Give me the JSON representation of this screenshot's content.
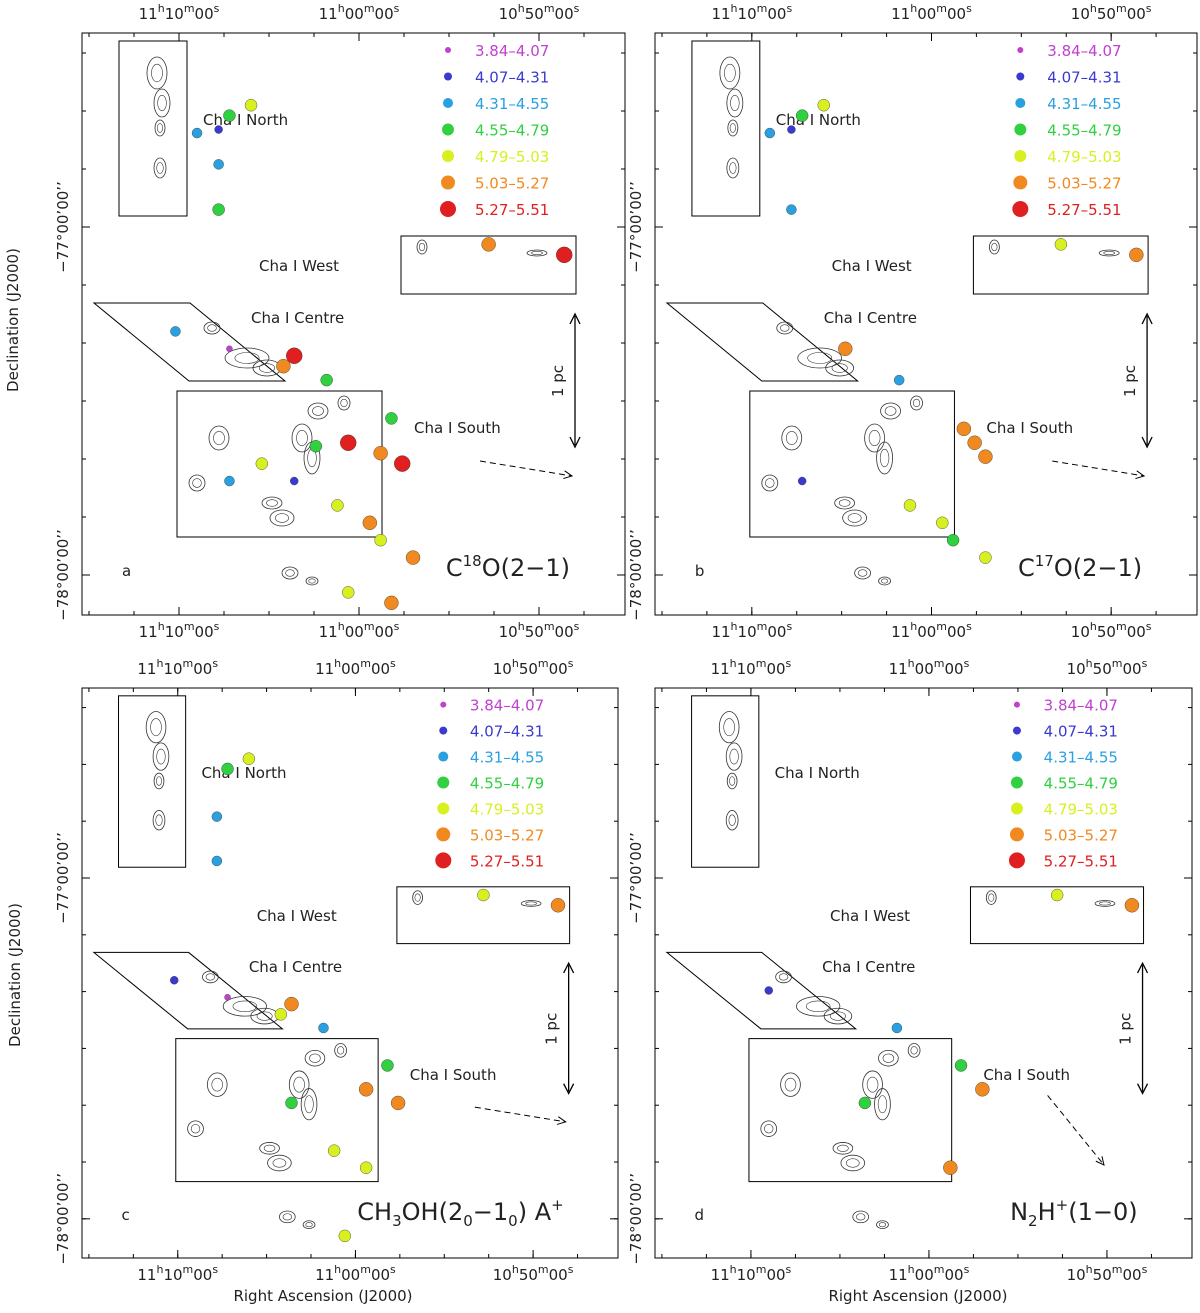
{
  "legend": {
    "items": [
      {
        "label": "3.84–4.07",
        "color": "#c040d0"
      },
      {
        "label": "4.07–4.31",
        "color": "#3a3ad0"
      },
      {
        "label": "4.31–4.55",
        "color": "#2aa0e0"
      },
      {
        "label": "4.55–4.79",
        "color": "#30d040"
      },
      {
        "label": "4.79–5.03",
        "color": "#d8f020"
      },
      {
        "label": "5.03–5.27",
        "color": "#f08a20"
      },
      {
        "label": "5.27–5.51",
        "color": "#e02020"
      }
    ]
  },
  "axes": {
    "ra_ticks": [
      {
        "h": "11",
        "m": "10",
        "s": "00"
      },
      {
        "h": "11",
        "m": "00",
        "s": "00"
      },
      {
        "h": "10",
        "m": "50",
        "s": "00"
      }
    ],
    "dec_ticks": [
      "−77°00’00’’",
      "−78°00’00’’"
    ],
    "ylabel": "Declination (J2000)",
    "xlabel": "Right Ascension (J2000)"
  },
  "regions": {
    "north": "Cha I North",
    "west": "Cha I West",
    "centre": "Cha I Centre",
    "south": "Cha I South"
  },
  "scale_bar": "1 pc",
  "chart_data": [
    {
      "type": "scatter",
      "panel_letter": "a",
      "molecule": {
        "base": "C",
        "sup": "18",
        "rest": "O(2−1)"
      },
      "points": [
        {
          "ra": 11.1,
          "dec": -76.65,
          "bin": 4
        },
        {
          "ra": 11.12,
          "dec": -76.68,
          "bin": 3
        },
        {
          "ra": 11.13,
          "dec": -76.72,
          "bin": 1
        },
        {
          "ra": 11.15,
          "dec": -76.73,
          "bin": 2
        },
        {
          "ra": 11.13,
          "dec": -76.82,
          "bin": 2
        },
        {
          "ra": 11.13,
          "dec": -76.95,
          "bin": 3
        },
        {
          "ra": 10.88,
          "dec": -77.05,
          "bin": 5
        },
        {
          "ra": 10.81,
          "dec": -77.08,
          "bin": 6
        },
        {
          "ra": 11.17,
          "dec": -77.3,
          "bin": 2
        },
        {
          "ra": 11.12,
          "dec": -77.35,
          "bin": 0
        },
        {
          "ra": 11.06,
          "dec": -77.37,
          "bin": 6
        },
        {
          "ra": 11.07,
          "dec": -77.4,
          "bin": 5
        },
        {
          "ra": 11.03,
          "dec": -77.44,
          "bin": 3
        },
        {
          "ra": 10.97,
          "dec": -77.55,
          "bin": 3
        },
        {
          "ra": 11.01,
          "dec": -77.62,
          "bin": 6
        },
        {
          "ra": 10.98,
          "dec": -77.65,
          "bin": 5
        },
        {
          "ra": 10.96,
          "dec": -77.68,
          "bin": 6
        },
        {
          "ra": 11.04,
          "dec": -77.63,
          "bin": 3
        },
        {
          "ra": 11.09,
          "dec": -77.68,
          "bin": 4
        },
        {
          "ra": 11.12,
          "dec": -77.73,
          "bin": 2
        },
        {
          "ra": 11.06,
          "dec": -77.73,
          "bin": 1
        },
        {
          "ra": 11.02,
          "dec": -77.8,
          "bin": 4
        },
        {
          "ra": 10.99,
          "dec": -77.85,
          "bin": 5
        },
        {
          "ra": 10.98,
          "dec": -77.9,
          "bin": 4
        },
        {
          "ra": 10.95,
          "dec": -77.95,
          "bin": 5
        },
        {
          "ra": 11.01,
          "dec": -78.05,
          "bin": 4
        },
        {
          "ra": 10.97,
          "dec": -78.08,
          "bin": 5
        }
      ]
    },
    {
      "type": "scatter",
      "panel_letter": "b",
      "molecule": {
        "base": "C",
        "sup": "17",
        "rest": "O(2−1)"
      },
      "points": [
        {
          "ra": 11.1,
          "dec": -76.65,
          "bin": 4
        },
        {
          "ra": 11.12,
          "dec": -76.68,
          "bin": 3
        },
        {
          "ra": 11.13,
          "dec": -76.72,
          "bin": 1
        },
        {
          "ra": 11.15,
          "dec": -76.73,
          "bin": 2
        },
        {
          "ra": 11.13,
          "dec": -76.95,
          "bin": 2
        },
        {
          "ra": 10.88,
          "dec": -77.05,
          "bin": 4
        },
        {
          "ra": 10.81,
          "dec": -77.08,
          "bin": 5
        },
        {
          "ra": 11.08,
          "dec": -77.35,
          "bin": 5
        },
        {
          "ra": 11.03,
          "dec": -77.44,
          "bin": 2
        },
        {
          "ra": 10.97,
          "dec": -77.58,
          "bin": 5
        },
        {
          "ra": 10.96,
          "dec": -77.62,
          "bin": 5
        },
        {
          "ra": 10.95,
          "dec": -77.66,
          "bin": 5
        },
        {
          "ra": 11.12,
          "dec": -77.73,
          "bin": 1
        },
        {
          "ra": 11.02,
          "dec": -77.8,
          "bin": 4
        },
        {
          "ra": 10.99,
          "dec": -77.85,
          "bin": 4
        },
        {
          "ra": 10.98,
          "dec": -77.9,
          "bin": 3
        },
        {
          "ra": 10.95,
          "dec": -77.95,
          "bin": 4
        }
      ]
    },
    {
      "type": "scatter",
      "panel_letter": "c",
      "molecule": {
        "base": "CH",
        "sub": "3",
        "mid": "OH(2",
        "sub2": "0",
        "mid2": "−1",
        "sub3": "0",
        "end": ") A",
        "sup": "+"
      },
      "points": [
        {
          "ra": 11.1,
          "dec": -76.65,
          "bin": 4
        },
        {
          "ra": 11.12,
          "dec": -76.68,
          "bin": 3
        },
        {
          "ra": 11.13,
          "dec": -76.82,
          "bin": 2
        },
        {
          "ra": 11.13,
          "dec": -76.95,
          "bin": 2
        },
        {
          "ra": 10.88,
          "dec": -77.05,
          "bin": 4
        },
        {
          "ra": 10.81,
          "dec": -77.08,
          "bin": 5
        },
        {
          "ra": 11.17,
          "dec": -77.3,
          "bin": 1
        },
        {
          "ra": 11.12,
          "dec": -77.35,
          "bin": 0
        },
        {
          "ra": 11.06,
          "dec": -77.37,
          "bin": 5
        },
        {
          "ra": 11.07,
          "dec": -77.4,
          "bin": 4
        },
        {
          "ra": 11.03,
          "dec": -77.44,
          "bin": 2
        },
        {
          "ra": 10.97,
          "dec": -77.55,
          "bin": 3
        },
        {
          "ra": 10.99,
          "dec": -77.62,
          "bin": 5
        },
        {
          "ra": 10.96,
          "dec": -77.66,
          "bin": 5
        },
        {
          "ra": 11.06,
          "dec": -77.66,
          "bin": 3
        },
        {
          "ra": 11.02,
          "dec": -77.8,
          "bin": 4
        },
        {
          "ra": 10.99,
          "dec": -77.85,
          "bin": 4
        },
        {
          "ra": 11.01,
          "dec": -78.05,
          "bin": 4
        }
      ]
    },
    {
      "type": "scatter",
      "panel_letter": "d",
      "molecule": {
        "base": "N",
        "sub": "2",
        "mid": "H",
        "sup": "+",
        "end": "(1−0)"
      },
      "points": [
        {
          "ra": 10.88,
          "dec": -77.05,
          "bin": 4
        },
        {
          "ra": 10.81,
          "dec": -77.08,
          "bin": 5
        },
        {
          "ra": 11.15,
          "dec": -77.33,
          "bin": 1
        },
        {
          "ra": 11.03,
          "dec": -77.44,
          "bin": 2
        },
        {
          "ra": 10.97,
          "dec": -77.55,
          "bin": 3
        },
        {
          "ra": 11.06,
          "dec": -77.66,
          "bin": 3
        },
        {
          "ra": 10.98,
          "dec": -77.85,
          "bin": 5
        },
        {
          "ra": 10.95,
          "dec": -77.62,
          "bin": 5
        }
      ]
    }
  ]
}
